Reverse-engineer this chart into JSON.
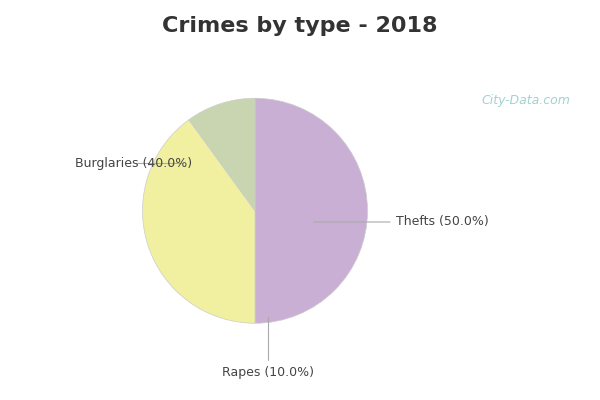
{
  "title": "Crimes by type - 2018",
  "slices": [
    {
      "label": "Thefts (50.0%)",
      "value": 50.0,
      "color": "#c9afd4"
    },
    {
      "label": "Burglaries (40.0%)",
      "value": 40.0,
      "color": "#f0f0a0"
    },
    {
      "label": "Rapes (10.0%)",
      "value": 10.0,
      "color": "#c8d5b0"
    }
  ],
  "title_bg_color": "#00eeff",
  "body_bg_color": "#e8f5f2",
  "title_fontsize": 16,
  "title_color": "#333333",
  "label_fontsize": 9,
  "label_color": "#444444",
  "watermark_text": "City-Data.com",
  "watermark_color": "#99cccc",
  "start_angle": 90
}
